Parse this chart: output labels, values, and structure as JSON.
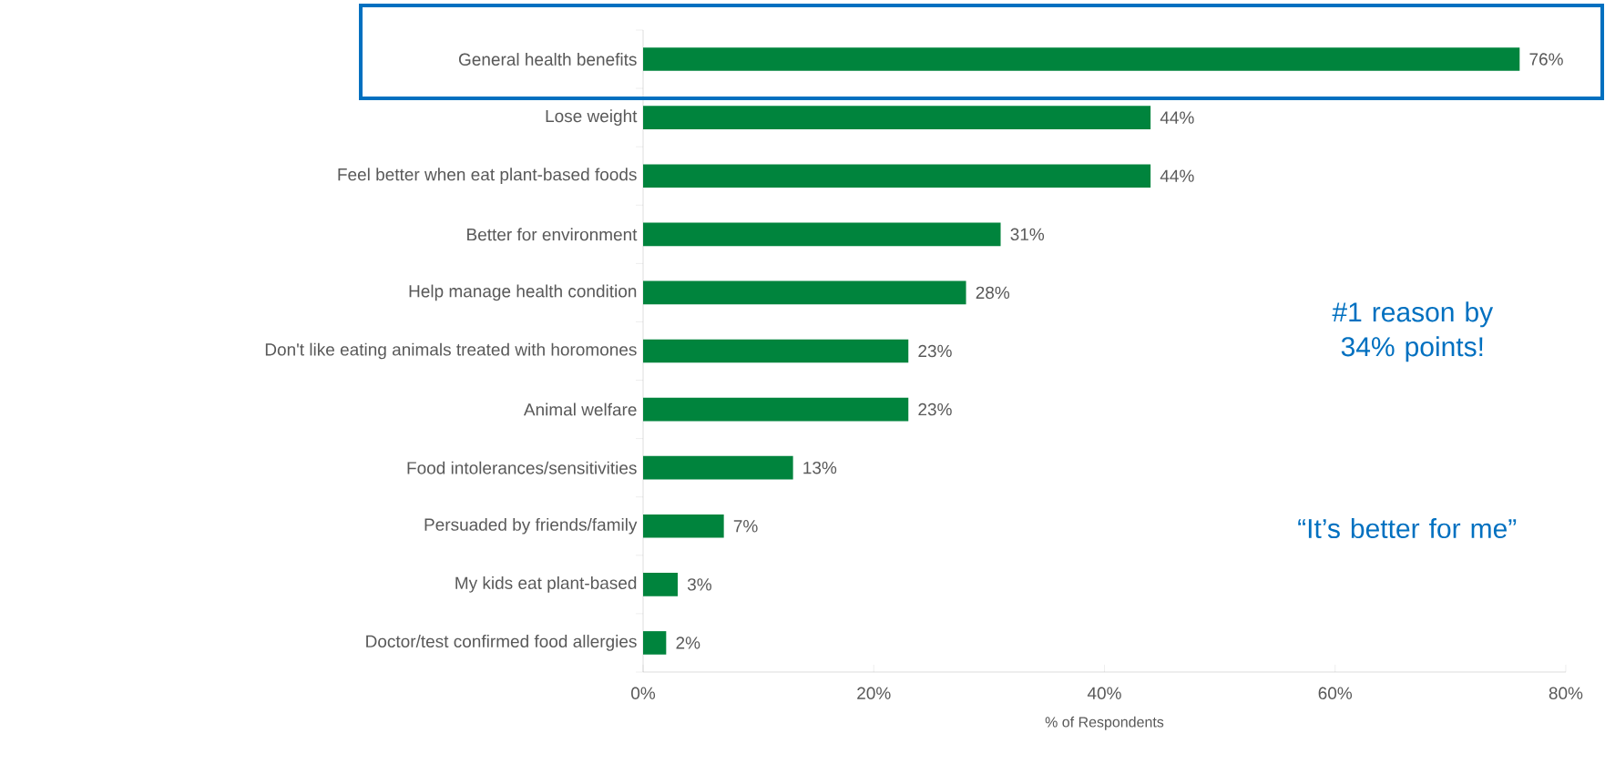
{
  "chart_data": {
    "type": "bar",
    "orientation": "horizontal",
    "categories": [
      "General health benefits",
      "Lose weight",
      "Feel better when eat plant-based foods",
      "Better for environment",
      "Help manage health condition",
      "Don't like eating animals treated with horomones",
      "Animal welfare",
      "Food intolerances/sensitivities",
      "Persuaded by friends/family",
      "My kids eat plant-based",
      "Doctor/test confirmed food allergies"
    ],
    "values": [
      76,
      44,
      44,
      31,
      28,
      23,
      23,
      13,
      7,
      3,
      2
    ],
    "value_labels": [
      "76%",
      "44%",
      "44%",
      "31%",
      "28%",
      "23%",
      "23%",
      "13%",
      "7%",
      "3%",
      "2%"
    ],
    "color": "#00843d",
    "xlim": [
      0,
      80
    ],
    "xticks": [
      {
        "value": 0,
        "label": "0%"
      },
      {
        "value": 20,
        "label": "20%"
      },
      {
        "value": 40,
        "label": "40%"
      },
      {
        "value": 60,
        "label": "60%"
      },
      {
        "value": 80,
        "label": "80%"
      }
    ],
    "xlabel": "% of Respondents",
    "annotations": [
      "#1 reason by 34% points!",
      "“It’s better for me”"
    ]
  }
}
